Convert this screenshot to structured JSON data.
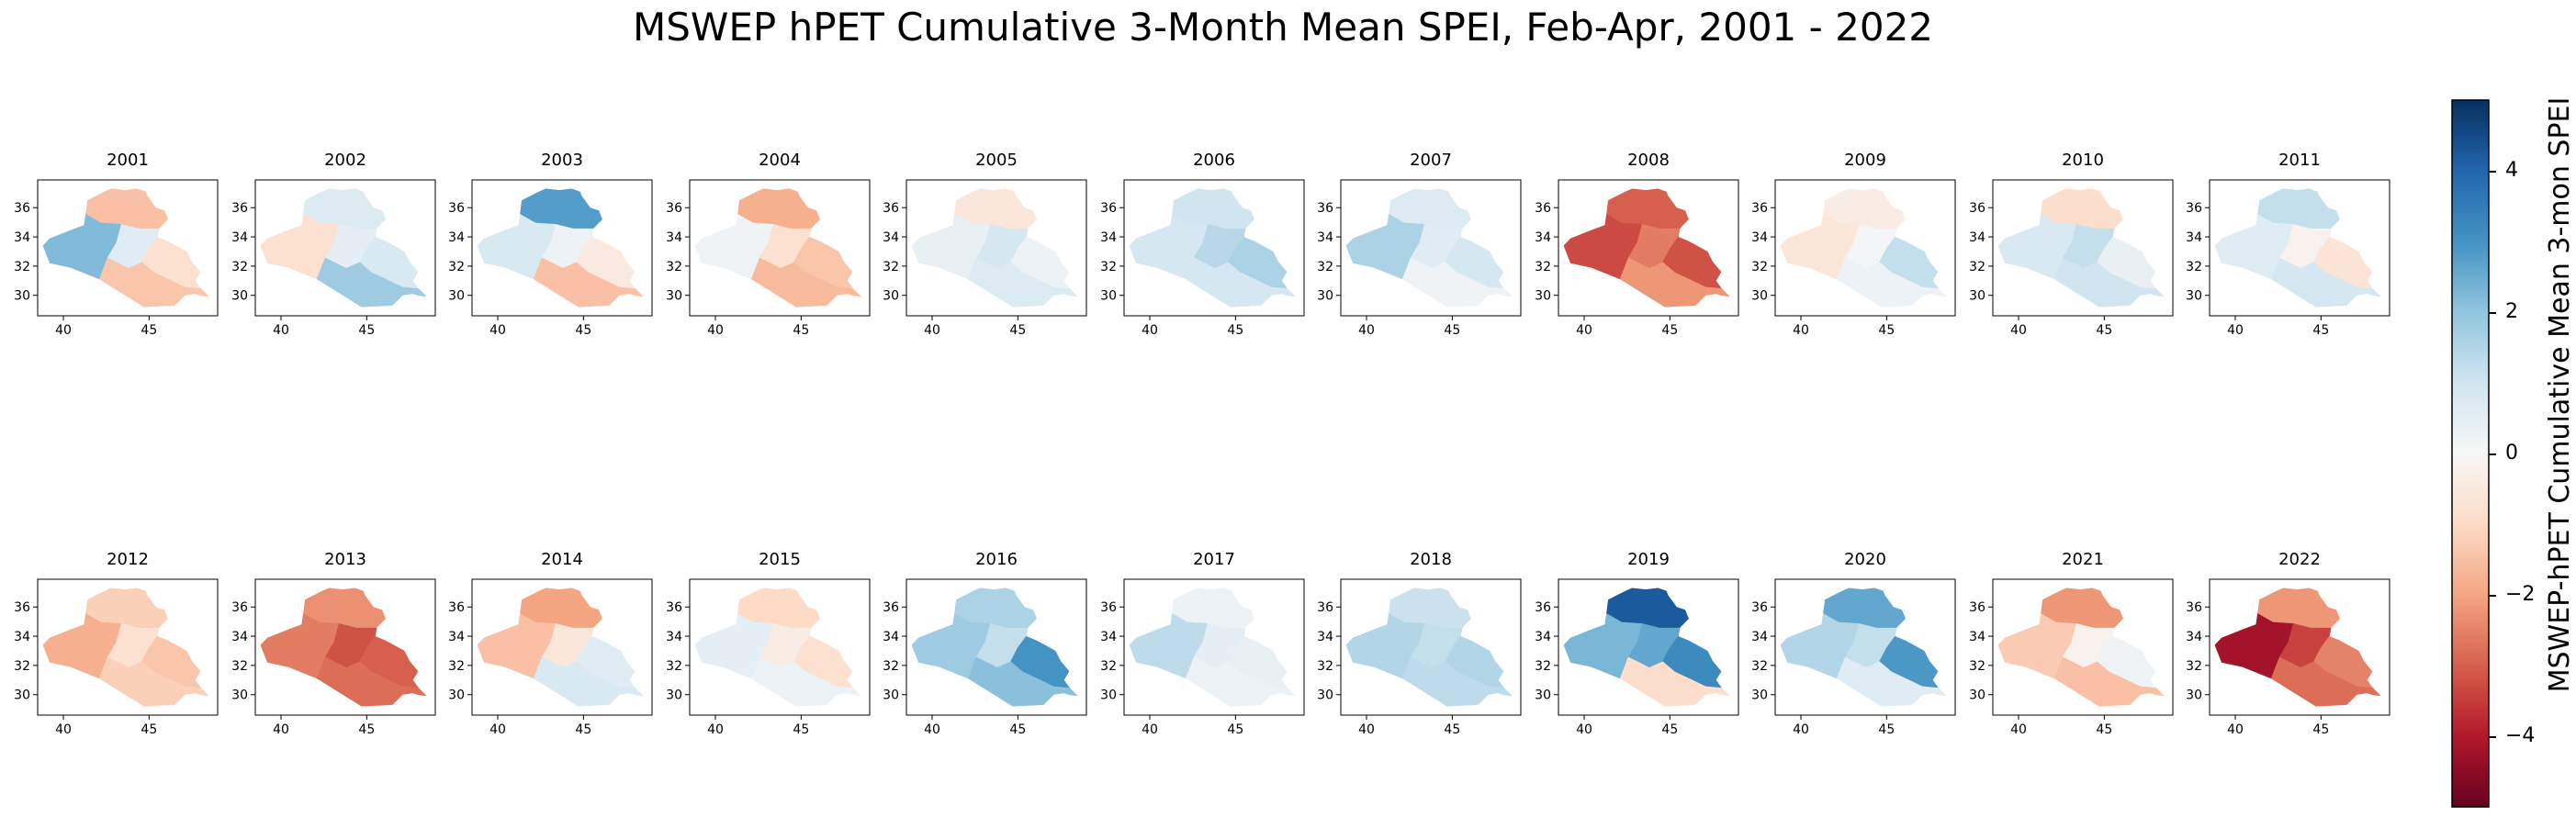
{
  "title": "MSWEP hPET Cumulative 3-Month Mean SPEI, Feb-Apr, 2001 - 2022",
  "colorbar": {
    "label": "MSWEP-hPET Cumulative Mean 3-mon SPEI",
    "min": -5,
    "max": 5,
    "ticks": [
      {
        "value": 4,
        "label": "4"
      },
      {
        "value": 2,
        "label": "2"
      },
      {
        "value": 0,
        "label": "0"
      },
      {
        "value": -2,
        "label": "−2"
      },
      {
        "value": -4,
        "label": "−4"
      }
    ],
    "colors": [
      "#67001f",
      "#b2182b",
      "#d6604d",
      "#f4a582",
      "#fddbc7",
      "#f7f7f7",
      "#d1e5f0",
      "#92c5de",
      "#4393c3",
      "#2166ac",
      "#053061"
    ]
  },
  "map_axes": {
    "x_ticks": [
      {
        "value": 40,
        "label": "40"
      },
      {
        "value": 45,
        "label": "45"
      }
    ],
    "y_ticks": [
      {
        "value": 36,
        "label": "36"
      },
      {
        "value": 34,
        "label": "34"
      },
      {
        "value": 32,
        "label": "32"
      },
      {
        "value": 30,
        "label": "30"
      }
    ],
    "x_range": [
      38.5,
      49
    ],
    "y_range": [
      28.6,
      37.9
    ]
  },
  "chart_data": {
    "type": "heatmap",
    "title": "MSWEP hPET Cumulative 3-Month Mean SPEI, Feb-Apr, 2001 - 2022",
    "panels": [
      {
        "year": "2001",
        "north": -1.5,
        "west": 2.2,
        "central": 0.6,
        "east": -0.8,
        "south": -1.4
      },
      {
        "year": "2002",
        "north": 0.7,
        "west": -0.8,
        "central": 0.5,
        "east": 0.8,
        "south": 1.8
      },
      {
        "year": "2003",
        "north": 2.8,
        "west": 0.8,
        "central": 0.3,
        "east": -0.5,
        "south": -1.5
      },
      {
        "year": "2004",
        "north": -1.8,
        "west": 0.2,
        "central": -0.8,
        "east": -1.4,
        "south": -1.6
      },
      {
        "year": "2005",
        "north": -0.6,
        "west": 0.4,
        "central": 0.9,
        "east": 0.3,
        "south": 0.7
      },
      {
        "year": "2006",
        "north": 1.0,
        "west": 0.9,
        "central": 1.4,
        "east": 1.6,
        "south": 0.9
      },
      {
        "year": "2007",
        "north": 0.7,
        "west": 1.6,
        "central": 0.6,
        "east": 0.9,
        "south": 0.2
      },
      {
        "year": "2008",
        "north": -3.0,
        "west": -3.3,
        "central": -2.6,
        "east": -3.2,
        "south": -2.2
      },
      {
        "year": "2009",
        "north": -0.4,
        "west": -0.6,
        "central": 0.1,
        "east": 1.2,
        "south": 0.3
      },
      {
        "year": "2010",
        "north": -0.9,
        "west": 0.8,
        "central": 1.2,
        "east": 0.4,
        "south": 1.0
      },
      {
        "year": "2011",
        "north": 1.2,
        "west": 0.6,
        "central": -0.2,
        "east": -0.7,
        "south": 0.9
      },
      {
        "year": "2012",
        "north": -1.2,
        "west": -1.8,
        "central": -0.8,
        "east": -1.4,
        "south": -1.2
      },
      {
        "year": "2013",
        "north": -2.3,
        "west": -2.6,
        "central": -3.2,
        "east": -3.0,
        "south": -2.8
      },
      {
        "year": "2014",
        "north": -2.0,
        "west": -1.5,
        "central": -0.6,
        "east": 0.6,
        "south": 0.8
      },
      {
        "year": "2015",
        "north": -1.0,
        "west": 0.5,
        "central": -0.4,
        "east": -0.8,
        "south": 0.3
      },
      {
        "year": "2016",
        "north": 1.6,
        "west": 1.8,
        "central": 1.2,
        "east": 3.0,
        "south": 2.1
      },
      {
        "year": "2017",
        "north": 0.3,
        "west": 1.3,
        "central": 0.5,
        "east": 0.4,
        "south": 0.3
      },
      {
        "year": "2018",
        "north": 1.1,
        "west": 1.5,
        "central": 1.2,
        "east": 1.5,
        "south": 1.3
      },
      {
        "year": "2019",
        "north": 4.2,
        "west": 2.3,
        "central": 2.6,
        "east": 3.2,
        "south": -0.9
      },
      {
        "year": "2020",
        "north": 2.6,
        "west": 1.5,
        "central": 1.2,
        "east": 2.9,
        "south": 0.6
      },
      {
        "year": "2021",
        "north": -2.2,
        "west": -1.3,
        "central": -0.2,
        "east": 0.2,
        "south": -1.5
      },
      {
        "year": "2022",
        "north": -2.2,
        "west": -4.2,
        "central": -3.4,
        "east": -2.5,
        "south": -2.8
      }
    ]
  }
}
